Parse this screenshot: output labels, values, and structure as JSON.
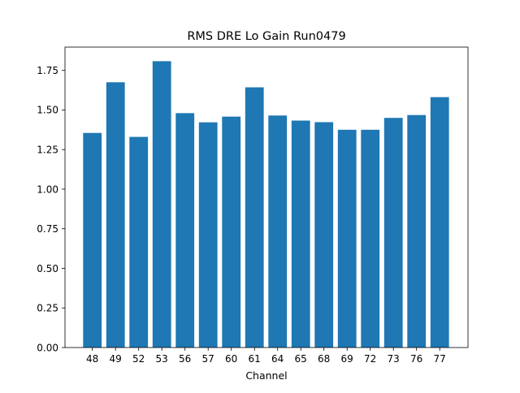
{
  "chart_data": {
    "type": "bar",
    "title": "RMS DRE Lo Gain Run0479",
    "xlabel": "Channel",
    "ylabel": "",
    "categories": [
      "48",
      "49",
      "52",
      "53",
      "56",
      "57",
      "60",
      "61",
      "64",
      "65",
      "68",
      "69",
      "72",
      "73",
      "76",
      "77"
    ],
    "values": [
      1.355,
      1.675,
      1.33,
      1.808,
      1.48,
      1.422,
      1.458,
      1.643,
      1.465,
      1.433,
      1.423,
      1.375,
      1.375,
      1.45,
      1.468,
      1.581
    ],
    "ylim": [
      0,
      1.897
    ],
    "yticks": [
      0.0,
      0.25,
      0.5,
      0.75,
      1.0,
      1.25,
      1.5,
      1.75
    ],
    "ytick_labels": [
      "0.00",
      "0.25",
      "0.50",
      "0.75",
      "1.00",
      "1.25",
      "1.50",
      "1.75"
    ],
    "bar_color": "#1f77b4",
    "grid": false,
    "legend": "none"
  }
}
